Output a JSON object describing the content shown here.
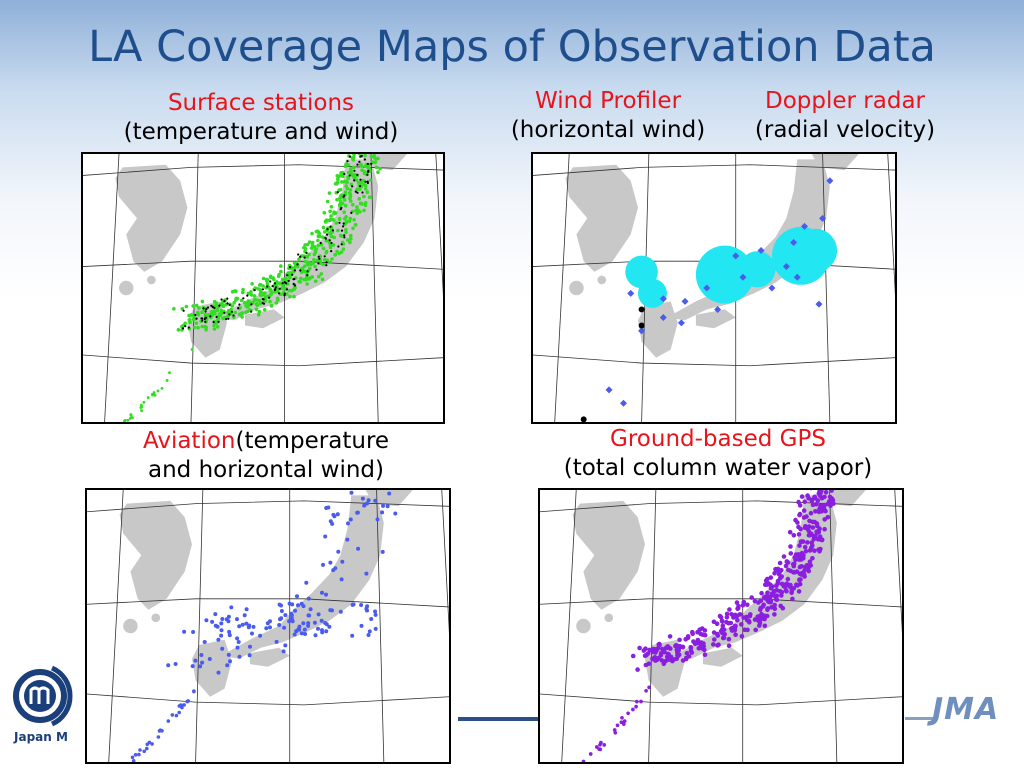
{
  "title": "LA Coverage Maps of Observation Data",
  "panels": {
    "surface": {
      "title": "Surface stations",
      "subtitle": "(temperature and wind)"
    },
    "wind_profiler": {
      "title": "Wind Profiler",
      "subtitle": "(horizontal wind)"
    },
    "doppler": {
      "title": "Doppler radar",
      "subtitle": "(radial velocity)"
    },
    "aviation": {
      "title": "Aviation",
      "subtitle_a": "(temperature",
      "subtitle_b": "and horizontal wind)"
    },
    "gps": {
      "title": "Ground-based GPS",
      "subtitle": "(total column water vapor)"
    }
  },
  "footer": {
    "org_abbrev": "JMA",
    "org_text": "Japan M"
  },
  "colors": {
    "title": "#1f4e8c",
    "red_label": "#e8141b",
    "land": "#c8c8c8",
    "surface_dots": "#33dd22",
    "aviation_dots": "#4a5cf0",
    "gps_dots": "#8a1fe0",
    "profiler_dots": "#4a5cf0",
    "doppler_fill": "#22e6f2"
  }
}
